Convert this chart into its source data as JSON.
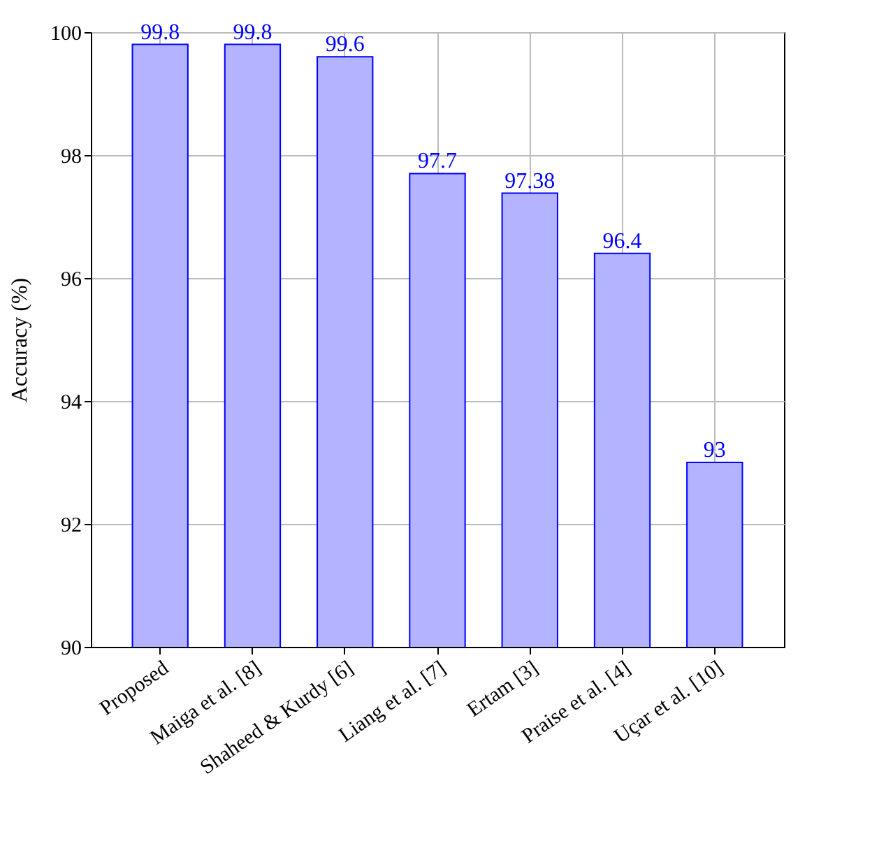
{
  "chart_data": {
    "type": "bar",
    "ylabel": "Accuracy (%)",
    "categories": [
      "Proposed",
      "Maiga et al. [8]",
      "Shaheed & Kurdy [6]",
      "Liang et al. [7]",
      "Ertam [3]",
      "Praise et al. [4]",
      "Uçar et al. [10]"
    ],
    "series": [
      {
        "color": "#b3b3ff",
        "values": [
          99.8,
          99.8,
          99.6,
          97.7,
          97.38,
          96.4,
          93
        ]
      }
    ],
    "ylim": [
      90,
      100
    ],
    "yticks": [
      90,
      92,
      94,
      96,
      98,
      100
    ],
    "grid": true,
    "data_labels": true
  }
}
